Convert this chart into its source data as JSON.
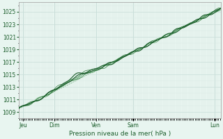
{
  "xlabel": "Pression niveau de la mer( hPa )",
  "ylim": [
    1008.5,
    1026.5
  ],
  "yticks": [
    1009,
    1011,
    1013,
    1015,
    1017,
    1019,
    1021,
    1023,
    1025
  ],
  "day_labels": [
    "Jeu",
    "Dim",
    "Ven",
    "Sam",
    "Lun"
  ],
  "day_positions": [
    0.02,
    0.175,
    0.385,
    0.565,
    0.97
  ],
  "bg_color": "#e8f5f0",
  "grid_major_color": "#c8ddd8",
  "grid_minor_color": "#daeae5",
  "line_color_dark": "#1a5c2a",
  "line_color_mid": "#2d7a3a",
  "line_color_light": "#4a9a5a",
  "border_color": "#aaaaaa",
  "xlabel_fontsize": 6.5,
  "tick_fontsize": 5.5
}
